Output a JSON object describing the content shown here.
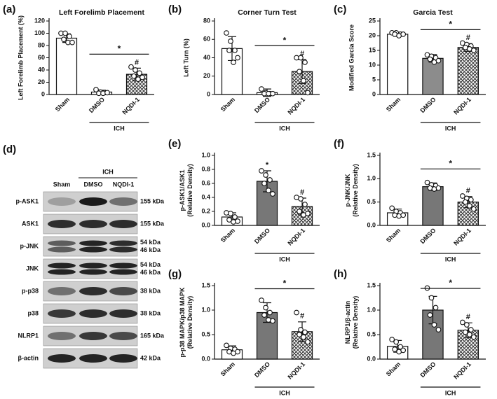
{
  "chart_data": [
    {
      "type": "bar",
      "panel": "(a)",
      "title": "Left  Forelimb Placement",
      "ylabel": [
        "Left Forelimb Placement (%)"
      ],
      "categories": [
        "Sham",
        "DMSO",
        "NQDI-1"
      ],
      "group": "ICH",
      "values": [
        92,
        4,
        33
      ],
      "errors": [
        7,
        3,
        10
      ],
      "points": [
        [
          100,
          100,
          95,
          90,
          85,
          85
        ],
        [
          8,
          4,
          3,
          2,
          2,
          3
        ],
        [
          45,
          40,
          35,
          30,
          25,
          28
        ]
      ],
      "colors": [
        "#ffffff",
        "#ffffff",
        "#ffffff"
      ],
      "hatch": [
        false,
        false,
        true
      ],
      "bracket": "*",
      "bar_marks": [
        null,
        null,
        "#"
      ],
      "ylim": [
        0,
        120
      ],
      "yticks": [
        0,
        20,
        40,
        60,
        80,
        100,
        120
      ]
    },
    {
      "type": "bar",
      "panel": "(b)",
      "title": "Corner Turn Test",
      "ylabel": [
        "Left Turn (%)"
      ],
      "categories": [
        "Sham",
        "DMSO",
        "NQDI-1"
      ],
      "group": "ICH",
      "values": [
        50,
        2,
        25
      ],
      "errors": [
        13,
        4,
        13
      ],
      "points": [
        [
          67,
          58,
          48,
          48,
          35,
          40
        ],
        [
          6,
          2,
          1,
          1,
          1,
          1
        ],
        [
          40,
          40,
          35,
          25,
          15,
          2
        ]
      ],
      "colors": [
        "#ffffff",
        "#ffffff",
        "#ffffff"
      ],
      "hatch": [
        false,
        false,
        true
      ],
      "bracket": "*",
      "bar_marks": [
        null,
        null,
        "#"
      ],
      "ylim": [
        0,
        80
      ],
      "yticks": [
        0,
        20,
        40,
        60,
        80
      ]
    },
    {
      "type": "bar",
      "panel": "(c)",
      "title": "Garcia Test",
      "ylabel": [
        "Modified Garcia Score"
      ],
      "categories": [
        "Sham",
        "DMSO",
        "NQDI-1"
      ],
      "group": "ICH",
      "values": [
        20.5,
        12.3,
        16
      ],
      "errors": [
        0.7,
        1.3,
        1.3
      ],
      "points": [
        [
          21,
          21,
          20.5,
          20.5,
          20,
          20.5
        ],
        [
          13.5,
          13,
          12.5,
          12,
          11,
          11.5
        ],
        [
          17.5,
          17,
          16.5,
          16,
          15.5,
          15
        ]
      ],
      "colors": [
        "#ffffff",
        "#8c8c8c",
        "#ffffff"
      ],
      "hatch": [
        false,
        false,
        true
      ],
      "bracket": "*",
      "bar_marks": [
        null,
        null,
        "#"
      ],
      "ylim": [
        0,
        25
      ],
      "yticks": [
        0,
        5,
        10,
        15,
        20,
        25
      ]
    },
    {
      "type": "bar",
      "panel": "(e)",
      "ylabel": [
        "p-ASK1/ASK1",
        "(Relative Density)"
      ],
      "categories": [
        "Sham",
        "DMSO",
        "NQDI-1"
      ],
      "group": "ICH",
      "values": [
        0.12,
        0.63,
        0.27
      ],
      "errors": [
        0.06,
        0.15,
        0.12
      ],
      "points": [
        [
          0.18,
          0.17,
          0.12,
          0.08,
          0.05,
          0.06
        ],
        [
          0.78,
          0.72,
          0.65,
          0.6,
          0.5,
          0.45
        ],
        [
          0.4,
          0.38,
          0.3,
          0.2,
          0.15,
          0.17
        ]
      ],
      "colors": [
        "#ffffff",
        "#777777",
        "#ffffff"
      ],
      "hatch": [
        false,
        false,
        true
      ],
      "bar_marks": [
        null,
        "*",
        "#"
      ],
      "ylim": [
        0,
        1
      ],
      "yticks": [
        {
          "value": 0,
          "label": "0.0"
        },
        0.2,
        0.4,
        0.6,
        0.8,
        {
          "value": 1,
          "label": "1.0"
        }
      ]
    },
    {
      "type": "bar",
      "panel": "(f)",
      "ylabel": [
        "p-JNK/JNK",
        "(Relative Density)"
      ],
      "categories": [
        "Sham",
        "DMSO",
        "NQDI-1"
      ],
      "group": "ICH",
      "values": [
        0.27,
        0.83,
        0.5
      ],
      "errors": [
        0.08,
        0.08,
        0.12
      ],
      "points": [
        [
          0.37,
          0.3,
          0.27,
          0.22,
          0.2,
          0.22
        ],
        [
          0.92,
          0.87,
          0.85,
          0.8,
          0.78,
          0.8
        ],
        [
          0.63,
          0.58,
          0.55,
          0.5,
          0.42,
          0.35
        ]
      ],
      "colors": [
        "#ffffff",
        "#777777",
        "#ffffff"
      ],
      "hatch": [
        false,
        false,
        true
      ],
      "bracket": "*",
      "bar_marks": [
        null,
        null,
        "#"
      ],
      "ylim": [
        0,
        1.5
      ],
      "yticks": [
        {
          "value": 0,
          "label": "0.0"
        },
        0.5,
        {
          "value": 1,
          "label": "1.0"
        },
        1.5
      ]
    },
    {
      "type": "bar",
      "panel": "(g)",
      "ylabel": [
        "p-p38 MAPK/p38 MAPK",
        "(Relative Density)"
      ],
      "categories": [
        "Sham",
        "DMSO",
        "NQDI-1"
      ],
      "group": "ICH",
      "values": [
        0.19,
        0.95,
        0.56
      ],
      "errors": [
        0.08,
        0.2,
        0.2
      ],
      "points": [
        [
          0.28,
          0.22,
          0.2,
          0.15,
          0.12,
          0.15
        ],
        [
          1.2,
          1.05,
          0.95,
          0.9,
          0.8,
          0.78
        ],
        [
          0.95,
          0.6,
          0.55,
          0.5,
          0.45,
          0.35
        ]
      ],
      "colors": [
        "#ffffff",
        "#777777",
        "#ffffff"
      ],
      "hatch": [
        false,
        false,
        true
      ],
      "bracket": "*",
      "bar_marks": [
        null,
        null,
        "#"
      ],
      "ylim": [
        0,
        1.5
      ],
      "yticks": [
        {
          "value": 0,
          "label": "0.0"
        },
        0.5,
        {
          "value": 1,
          "label": "1.0"
        },
        1.5
      ]
    },
    {
      "type": "bar",
      "panel": "(h)",
      "ylabel": [
        "NLRP1/β-actin",
        "(Relative Density)"
      ],
      "categories": [
        "Sham",
        "DMSO",
        "NQDI-1"
      ],
      "group": "ICH",
      "values": [
        0.26,
        1.0,
        0.59
      ],
      "errors": [
        0.12,
        0.28,
        0.15
      ],
      "points": [
        [
          0.4,
          0.35,
          0.25,
          0.2,
          0.15,
          0.18
        ],
        [
          1.45,
          1.25,
          1.05,
          0.9,
          0.7,
          0.6
        ],
        [
          0.75,
          0.7,
          0.6,
          0.55,
          0.5,
          0.45
        ]
      ],
      "colors": [
        "#ffffff",
        "#777777",
        "#ffffff"
      ],
      "hatch": [
        false,
        false,
        true
      ],
      "bracket": "*",
      "bar_marks": [
        null,
        null,
        "#"
      ],
      "ylim": [
        0,
        1.5
      ],
      "yticks": [
        {
          "value": 0,
          "label": "0.0"
        },
        0.5,
        {
          "value": 1,
          "label": "1.0"
        },
        1.5
      ]
    }
  ],
  "blot": {
    "panel": "(d)",
    "group": "ICH",
    "columns": [
      "Sham",
      "DMSO",
      "NQDI-1"
    ],
    "rows": [
      {
        "name": "p-ASK1",
        "size": [
          "155 kDa"
        ]
      },
      {
        "name": "ASK1",
        "size": [
          "155 kDa"
        ]
      },
      {
        "name": "p-JNK",
        "size": [
          "54 kDa",
          "46 kDa"
        ]
      },
      {
        "name": "JNK",
        "size": [
          "54 kDa",
          "46 kDa"
        ]
      },
      {
        "name": "p-p38",
        "size": [
          "38 kDa"
        ]
      },
      {
        "name": "p38",
        "size": [
          "38 kDa"
        ]
      },
      {
        "name": "NLRP1",
        "size": [
          "165 kDa"
        ]
      },
      {
        "name": "β-actin",
        "size": [
          "42 kDa"
        ]
      }
    ]
  }
}
